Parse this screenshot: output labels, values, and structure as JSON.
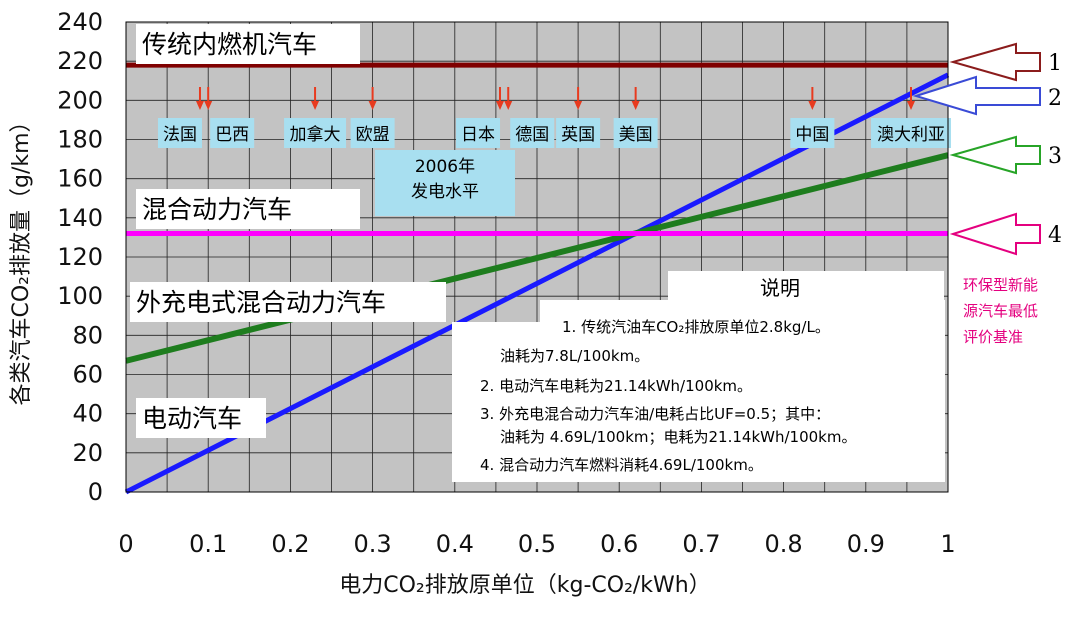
{
  "chart_data": {
    "type": "line",
    "title": "",
    "xlabel": "电力CO₂排放原单位（kg-CO₂/kWh）",
    "ylabel": "各类汽车CO₂排放量（g/km）",
    "xlim": [
      0,
      1
    ],
    "ylim": [
      0,
      240
    ],
    "x_ticks": [
      0,
      0.1,
      0.2,
      0.3,
      0.4,
      0.5,
      0.6,
      0.7,
      0.8,
      0.9,
      1
    ],
    "x_tick_labels": [
      "0",
      "0.1",
      "0.2",
      "0.3",
      "0.4",
      "0.5",
      "0.6",
      "0.7",
      "0.8",
      "0.9",
      "1"
    ],
    "y_ticks": [
      0,
      20,
      40,
      60,
      80,
      100,
      120,
      140,
      160,
      180,
      200,
      220,
      240
    ],
    "y_tick_labels": [
      "0",
      "20",
      "40",
      "60",
      "80",
      "100",
      "120",
      "140",
      "160",
      "180",
      "200",
      "220",
      "240"
    ],
    "grid": true,
    "series": [
      {
        "name": "传统内燃机汽车",
        "color": "#800000",
        "x": [
          0,
          1
        ],
        "y": [
          218,
          218
        ]
      },
      {
        "name": "电动汽车",
        "color": "#1a1aff",
        "x": [
          0,
          1
        ],
        "y": [
          0,
          213
        ]
      },
      {
        "name": "外充电式混合动力汽车",
        "color": "#1e7d1e",
        "x": [
          0,
          1
        ],
        "y": [
          67,
          172
        ]
      },
      {
        "name": "混合动力汽车",
        "color": "#ff00ff",
        "x": [
          0,
          1
        ],
        "y": [
          132,
          132
        ]
      }
    ],
    "countries": [
      {
        "name": "法国",
        "x": 0.09
      },
      {
        "name": "巴西",
        "x": 0.1
      },
      {
        "name": "加拿大",
        "x": 0.23
      },
      {
        "name": "欧盟",
        "x": 0.3
      },
      {
        "name": "日本",
        "x": 0.455
      },
      {
        "name": "德国",
        "x": 0.465
      },
      {
        "name": "英国",
        "x": 0.55
      },
      {
        "name": "美国",
        "x": 0.62
      },
      {
        "name": "中国",
        "x": 0.835
      },
      {
        "name": "澳大利亚",
        "x": 0.955
      }
    ],
    "generation_label": [
      "2006年",
      "发电水平"
    ],
    "category_labels": [
      "传统内燃机汽车",
      "混合动力汽车",
      "外充电式混合动力汽车",
      "电动汽车"
    ],
    "arrow_numbers": [
      "1",
      "2",
      "3",
      "4"
    ],
    "eval_label": [
      "环保型新能",
      "源汽车最低",
      "评价基准"
    ],
    "notes": {
      "title": "说明",
      "lines": [
        "1. 传统汽油车CO₂排放原单位2.8kg/L。",
        "油耗为7.8L/100km。",
        "2. 电动汽车电耗为21.14kWh/100km。",
        "3. 外充电混合动力汽车油/电耗占比UF=0.5；其中：",
        "油耗为 4.69L/100km；电耗为21.14kWh/100km。",
        "4. 混合动力汽车燃料消耗4.69L/100km。"
      ]
    }
  }
}
